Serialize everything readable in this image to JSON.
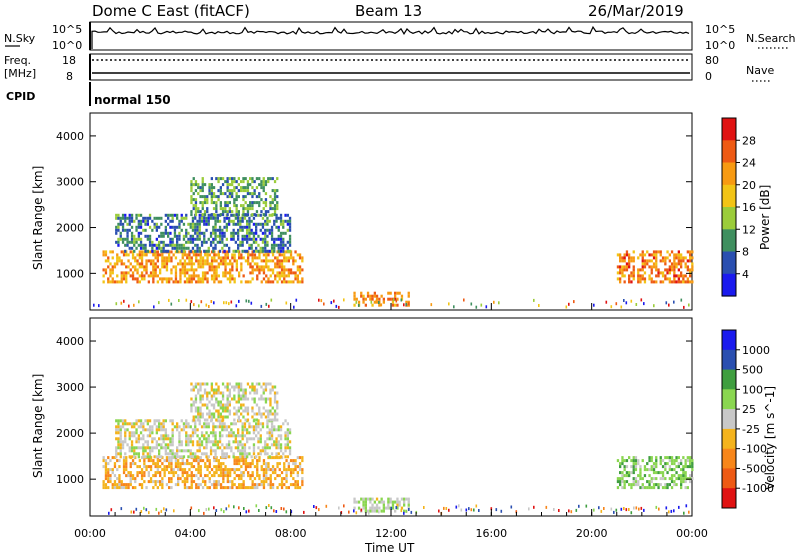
{
  "header": {
    "station": "Dome C East (fitACF)",
    "beam": "Beam 13",
    "date": "26/Mar/2019"
  },
  "status_panel": {
    "nsky_label": "N.Sky",
    "nsky_tick_top": "10^5",
    "nsky_tick_bottom": "10^0",
    "nsearch_label": "N.Search",
    "nsearch_tick_top": "10^5",
    "nsearch_tick_bottom": "10^0",
    "freq_label_1": "Freq.",
    "freq_label_2": "[MHz]",
    "freq_tick_top": "18",
    "freq_tick_bottom": "8",
    "nave_label": "Nave",
    "nave_tick_top": "80",
    "nave_tick_bottom": "0",
    "cpid_label": "CPID",
    "cpid_value": "normal 150"
  },
  "colors": {
    "power": [
      "#1a1aee",
      "#2a4fb0",
      "#3f8f5f",
      "#9bcc3a",
      "#f2c416",
      "#f79a12",
      "#ee5a14",
      "#e01212"
    ],
    "velocity": [
      "#e01212",
      "#ee5a14",
      "#f7861a",
      "#f4b31c",
      "#c8c8c8",
      "#8ad650",
      "#3f9e3f",
      "#2a4fb0",
      "#1a1aee"
    ]
  },
  "chart_data": [
    {
      "type": "heatmap",
      "title": "",
      "xlabel": "Time UT",
      "ylabel": "Slant Range [km]",
      "xlim": [
        "00:00",
        "24:00"
      ],
      "ylim": [
        200,
        4500
      ],
      "x_ticks": [
        "00:00",
        "04:00",
        "08:00",
        "12:00",
        "16:00",
        "20:00",
        "00:00"
      ],
      "y_ticks": [
        "1000",
        "2000",
        "3000",
        "4000"
      ],
      "colorbar": {
        "label": "Power [dB]",
        "ticks": [
          "4",
          "8",
          "12",
          "16",
          "20",
          "24",
          "28"
        ],
        "range": [
          0,
          30
        ]
      },
      "regions": [
        {
          "t_start": 0.5,
          "t_end": 8.5,
          "range_km": [
            800,
            1500
          ],
          "value_db": 20
        },
        {
          "t_start": 1.0,
          "t_end": 8.0,
          "range_km": [
            1500,
            2300
          ],
          "value_db": 8
        },
        {
          "t_start": 4.0,
          "t_end": 7.5,
          "range_km": [
            2300,
            3100
          ],
          "value_db": 10
        },
        {
          "t_start": 10.5,
          "t_end": 12.7,
          "range_km": [
            300,
            600
          ],
          "value_db": 22
        },
        {
          "t_start": 21.0,
          "t_end": 24.0,
          "range_km": [
            800,
            1500
          ],
          "value_db": 22
        }
      ]
    },
    {
      "type": "heatmap",
      "title": "",
      "xlabel": "Time UT",
      "ylabel": "Slant Range [km]",
      "xlim": [
        "00:00",
        "24:00"
      ],
      "ylim": [
        200,
        4500
      ],
      "x_ticks": [
        "00:00",
        "04:00",
        "08:00",
        "12:00",
        "16:00",
        "20:00",
        "00:00"
      ],
      "y_ticks": [
        "1000",
        "2000",
        "3000",
        "4000"
      ],
      "colorbar": {
        "label": "Velocity [m s^-1]",
        "ticks": [
          "1000",
          "500",
          "100",
          "25",
          "-25",
          "-100",
          "-500",
          "-1000"
        ],
        "range": [
          -1200,
          1200
        ]
      },
      "regions": [
        {
          "t_start": 0.5,
          "t_end": 8.5,
          "range_km": [
            800,
            1500
          ],
          "value_ms": -300
        },
        {
          "t_start": 1.0,
          "t_end": 8.0,
          "range_km": [
            1500,
            2300
          ],
          "value_ms": 0
        },
        {
          "t_start": 4.0,
          "t_end": 7.5,
          "range_km": [
            2300,
            3100
          ],
          "value_ms": 0
        },
        {
          "t_start": 10.5,
          "t_end": 12.7,
          "range_km": [
            300,
            600
          ],
          "value_ms": 100
        },
        {
          "t_start": 21.0,
          "t_end": 24.0,
          "range_km": [
            800,
            1500
          ],
          "value_ms": 300
        }
      ]
    }
  ]
}
